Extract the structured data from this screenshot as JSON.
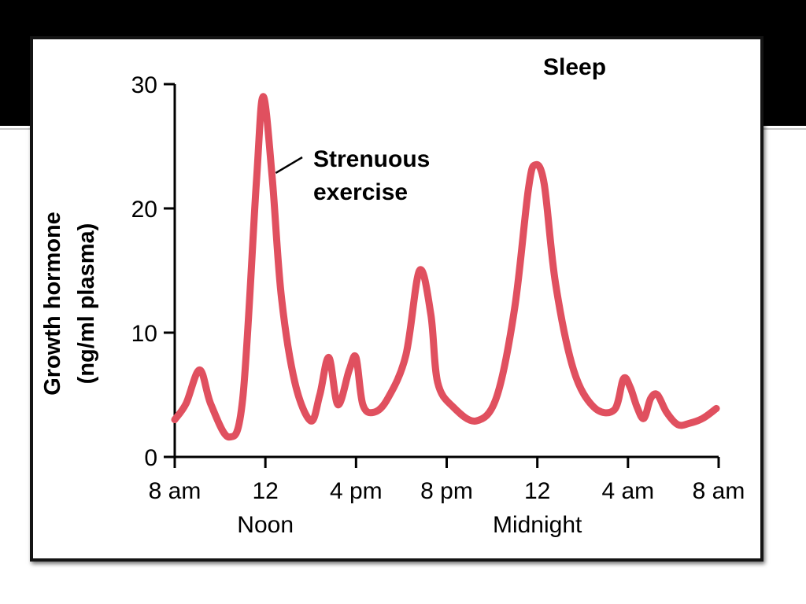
{
  "slide": {
    "background_top": "#000000"
  },
  "chart_data": {
    "type": "line",
    "title": "",
    "xlabel": "",
    "ylabel": "Growth hormone",
    "ylabel_unit": "(ng/ml plasma)",
    "ylim": [
      0,
      30
    ],
    "y_ticks": [
      "0",
      "10",
      "20",
      "30"
    ],
    "x_unit": "hours after 8 am",
    "xlim": [
      0,
      24
    ],
    "x_ticks": [
      {
        "hours": 0,
        "label": "8 am",
        "sublabel": ""
      },
      {
        "hours": 4,
        "label": "12",
        "sublabel": "Noon"
      },
      {
        "hours": 8,
        "label": "4 pm",
        "sublabel": ""
      },
      {
        "hours": 12,
        "label": "8 pm",
        "sublabel": ""
      },
      {
        "hours": 16,
        "label": "12",
        "sublabel": "Midnight"
      },
      {
        "hours": 20,
        "label": "4 am",
        "sublabel": ""
      },
      {
        "hours": 24,
        "label": "8 am",
        "sublabel": ""
      }
    ],
    "line_color": "#e0505f",
    "series": [
      {
        "x": [
          0,
          0.5,
          1.1,
          1.6,
          2.4,
          3.0,
          3.6,
          3.9,
          4.3,
          4.7,
          5.3,
          6.0,
          6.4,
          6.8,
          7.2,
          7.7,
          8.0,
          8.3,
          8.8,
          9.4,
          10.2,
          10.8,
          11.3,
          11.6,
          12.3,
          13.3,
          14.2,
          15.0,
          15.6,
          15.9,
          16.3,
          16.8,
          17.6,
          18.5,
          19.4,
          19.8,
          20.1,
          20.4,
          20.7,
          21.0,
          21.3,
          21.7,
          22.2,
          22.7,
          23.3,
          23.9
        ],
        "y": [
          3.0,
          4.3,
          7.0,
          4.2,
          1.6,
          4.7,
          22.0,
          29.0,
          22.5,
          13.0,
          6.0,
          2.9,
          5.0,
          8.0,
          4.2,
          7.0,
          8.0,
          4.2,
          3.6,
          4.7,
          8.2,
          15.0,
          11.5,
          6.0,
          4.0,
          2.9,
          4.8,
          12.0,
          21.5,
          23.5,
          22.0,
          14.0,
          7.0,
          4.0,
          3.8,
          6.3,
          5.6,
          4.0,
          3.1,
          4.7,
          5.0,
          3.6,
          2.6,
          2.7,
          3.1,
          3.9
        ]
      }
    ],
    "annotations": [
      {
        "text_line1": "Strenuous",
        "text_line2": "exercise",
        "points_to_hours": 4.25,
        "points_to_value": 22.6
      }
    ],
    "region_labels": [
      {
        "text": "Sleep"
      }
    ],
    "grid": false,
    "legend": "none"
  }
}
